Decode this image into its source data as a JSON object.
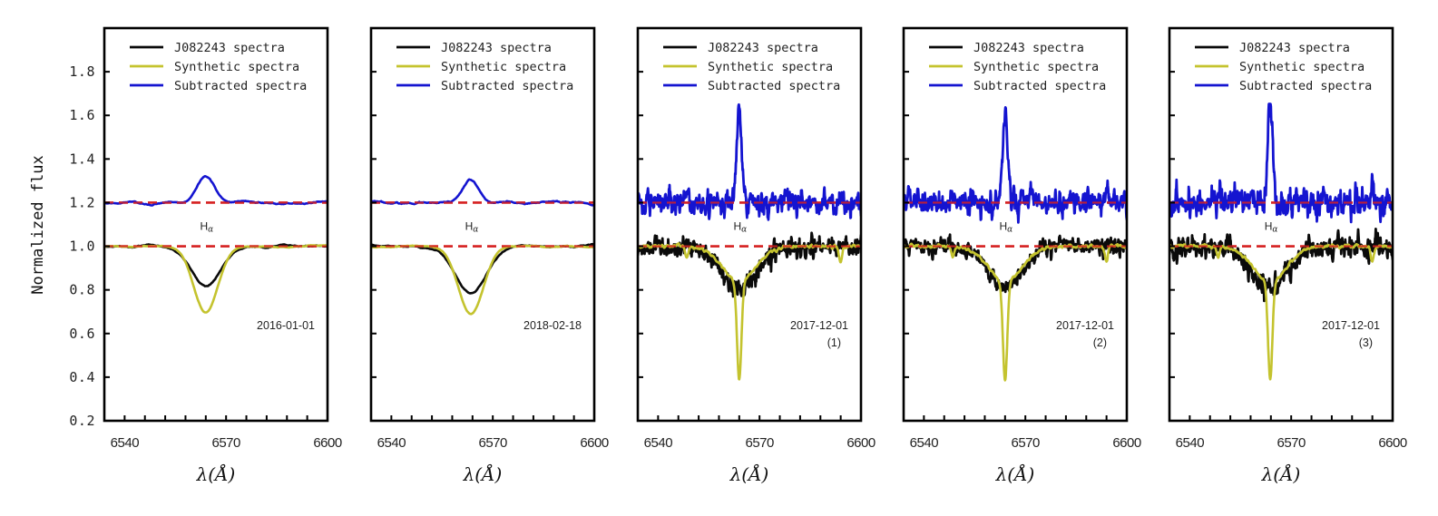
{
  "figure": {
    "ylabel": "Normalized flux",
    "xlabel": "λ(Å)",
    "colors": {
      "observed": "#0a0a0a",
      "synthetic": "#c4c32e",
      "subtracted": "#1414d0",
      "reference": "#d62222"
    }
  },
  "chart_data": {
    "type": "line",
    "layout": "5 panels in a row, shared y-axis",
    "title": "",
    "xlabel": "λ(Å)",
    "ylabel": "Normalized flux",
    "xlim": [
      6534,
      6600
    ],
    "ylim": [
      0.2,
      2.0
    ],
    "xticks": [
      6540,
      6570,
      6600
    ],
    "xminor_step": 6,
    "yticks": [
      0.2,
      0.4,
      0.6,
      0.8,
      1.0,
      1.2,
      1.4,
      1.6,
      1.8
    ],
    "ytick_labels": [
      "0.2",
      "0.4",
      "0.6",
      "0.8",
      "1.0",
      "1.2",
      "1.4",
      "1.6",
      "1.8"
    ],
    "xtick_labels": [
      "6540",
      "6570",
      "6600"
    ],
    "legend": {
      "placement": "top",
      "entries": [
        "J082243 spectra",
        "Synthetic spectra",
        "Subtracted spectra"
      ]
    },
    "reference_lines": [
      {
        "y": 1.0,
        "style": "dashed",
        "color": "red"
      },
      {
        "y": 1.2,
        "style": "dashed",
        "color": "red"
      }
    ],
    "line_label": "H",
    "line_label_sub": "α",
    "line_label_value": 1.1,
    "panels": [
      {
        "date": "2016-01-01",
        "suffix": "",
        "line_center": 6564,
        "observed": {
          "continuum": 1.0,
          "min": 0.82,
          "sigma": 4.5,
          "noise": 0.004
        },
        "synthetic": {
          "continuum": 1.0,
          "min": 0.7,
          "sigma": 3.6,
          "noise": 0.002,
          "extra_dips": []
        },
        "subtracted": {
          "offset": 1.2,
          "peak": 1.32,
          "sigma": 2.6,
          "noise": 0.004
        },
        "smooth": true
      },
      {
        "date": "2018-02-18",
        "suffix": "",
        "line_center": 6563.5,
        "observed": {
          "continuum": 1.0,
          "min": 0.785,
          "sigma": 4.6,
          "noise": 0.004
        },
        "synthetic": {
          "continuum": 1.0,
          "min": 0.69,
          "sigma": 3.7,
          "noise": 0.002,
          "extra_dips": []
        },
        "subtracted": {
          "offset": 1.2,
          "peak": 1.3,
          "sigma": 2.4,
          "noise": 0.005
        },
        "smooth": true
      },
      {
        "date": "2017-12-01",
        "suffix": "(1)",
        "line_center": 6564,
        "observed": {
          "continuum": 0.995,
          "min": 0.8,
          "sigma": 5.2,
          "noise": 0.014
        },
        "synthetic": {
          "continuum": 1.0,
          "min": 0.385,
          "sigma": 0.65,
          "wing_depth": 0.16,
          "wing_sigma": 5.0,
          "noise": 0.004,
          "extra_dips": [
            [
              6548.5,
              0.05
            ],
            [
              6594,
              0.07
            ]
          ]
        },
        "subtracted": {
          "offset": 1.2,
          "peak": 1.64,
          "sigma": 0.7,
          "noise": 0.018
        },
        "smooth": false
      },
      {
        "date": "2017-12-01",
        "suffix": "(2)",
        "line_center": 6564,
        "observed": {
          "continuum": 0.998,
          "min": 0.81,
          "sigma": 5.0,
          "noise": 0.013
        },
        "synthetic": {
          "continuum": 1.0,
          "min": 0.385,
          "sigma": 0.65,
          "wing_depth": 0.16,
          "wing_sigma": 5.0,
          "noise": 0.004,
          "extra_dips": [
            [
              6548.5,
              0.05
            ],
            [
              6594,
              0.07
            ]
          ]
        },
        "subtracted": {
          "offset": 1.2,
          "peak": 1.62,
          "sigma": 0.7,
          "noise": 0.018
        },
        "smooth": false
      },
      {
        "date": "2017-12-01",
        "suffix": "(3)",
        "line_center": 6563.8,
        "observed": {
          "continuum": 0.995,
          "min": 0.81,
          "sigma": 5.2,
          "noise": 0.016
        },
        "synthetic": {
          "continuum": 1.0,
          "min": 0.385,
          "sigma": 0.65,
          "wing_depth": 0.16,
          "wing_sigma": 5.0,
          "noise": 0.004,
          "extra_dips": [
            [
              6548.5,
              0.05
            ],
            [
              6594,
              0.07
            ]
          ]
        },
        "subtracted": {
          "offset": 1.2,
          "peak": 1.66,
          "sigma": 0.7,
          "noise": 0.022
        },
        "smooth": false
      }
    ]
  }
}
